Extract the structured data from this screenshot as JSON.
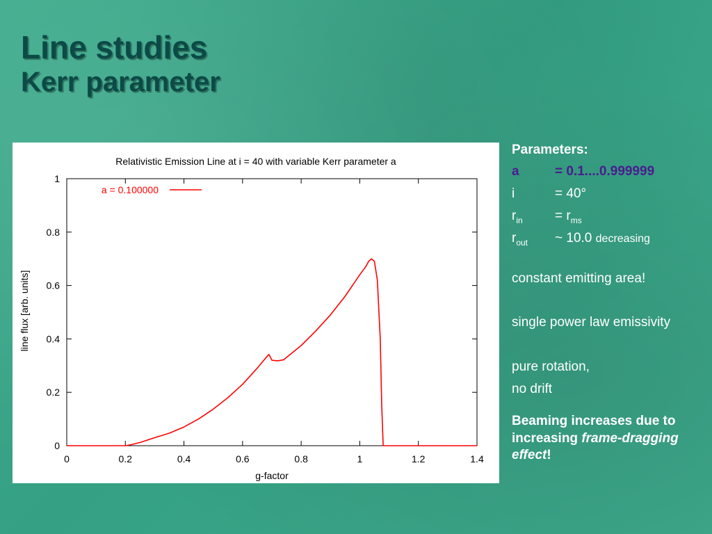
{
  "slide": {
    "title_line1": "Line studies",
    "title_line2": "Kerr parameter"
  },
  "chart_data": {
    "type": "line",
    "title": "Relativistic Emission Line at i = 40 with variable Kerr parameter a",
    "xlabel": "g-factor",
    "ylabel": "line flux [arb. units]",
    "xlim": [
      0,
      1.4
    ],
    "ylim": [
      0,
      1
    ],
    "xticks": [
      "0",
      "0.2",
      "0.4",
      "0.6",
      "0.8",
      "1",
      "1.2",
      "1.4"
    ],
    "yticks": [
      "0",
      "0.2",
      "0.4",
      "0.6",
      "0.8",
      "1"
    ],
    "legend_position": "top-left",
    "grid": false,
    "series": [
      {
        "name": "a = 0.100000",
        "color": "#ff0000",
        "x": [
          0,
          0.2,
          0.22,
          0.25,
          0.3,
          0.35,
          0.4,
          0.45,
          0.5,
          0.55,
          0.6,
          0.65,
          0.68,
          0.69,
          0.7,
          0.72,
          0.74,
          0.8,
          0.85,
          0.9,
          0.95,
          1.0,
          1.02,
          1.03,
          1.04,
          1.05,
          1.06,
          1.07,
          1.075,
          1.08,
          1.4
        ],
        "y": [
          0,
          0,
          0.004,
          0.012,
          0.03,
          0.047,
          0.07,
          0.1,
          0.137,
          0.18,
          0.23,
          0.29,
          0.33,
          0.342,
          0.32,
          0.318,
          0.322,
          0.375,
          0.43,
          0.49,
          0.56,
          0.64,
          0.67,
          0.69,
          0.7,
          0.69,
          0.62,
          0.4,
          0.15,
          0,
          0
        ]
      }
    ]
  },
  "params": {
    "heading": "Parameters:",
    "rows": [
      {
        "sym": "a",
        "val": "= 0.1....0.999999"
      },
      {
        "sym": "i",
        "val": "= 40°"
      },
      {
        "sym": "r",
        "sub": "in",
        "val": "= r",
        "val_sub": "ms"
      },
      {
        "sym": "r",
        "sub": "out",
        "val": "~ 10.0",
        "extra": "decreasing"
      }
    ]
  },
  "notes": {
    "constant_area": "constant emitting area!",
    "power_law": "single power law emissivity",
    "rotation_l1": "pure rotation,",
    "rotation_l2": "no drift"
  },
  "conclusion": {
    "part1": "Beaming increases due to increasing ",
    "emph": "frame-dragging effect",
    "part2": "!"
  },
  "colors": {
    "background": "#3aa88a",
    "title": "#0b4a46",
    "highlight": "#4a1c8f",
    "line": "#ff0000"
  }
}
